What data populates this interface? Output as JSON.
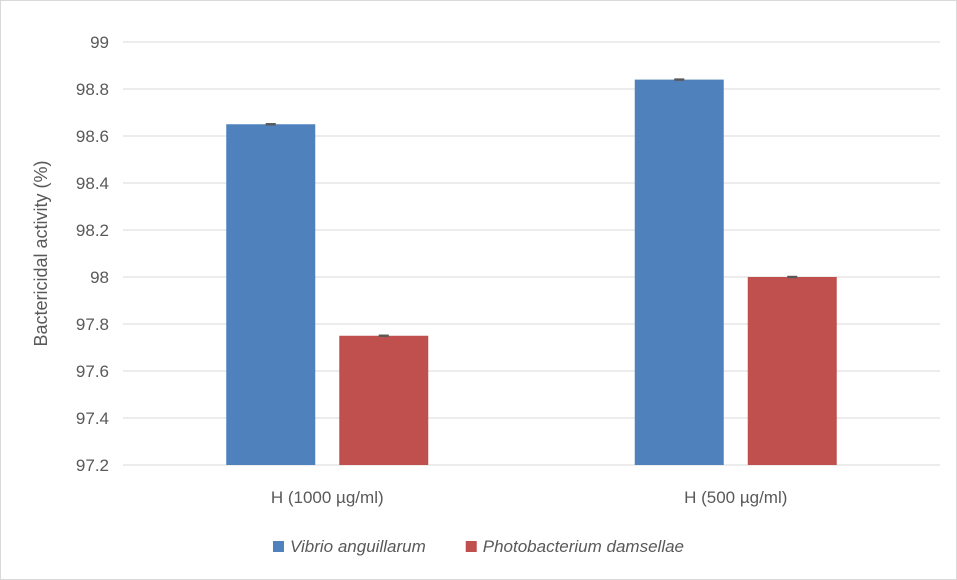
{
  "chart_data": {
    "type": "bar",
    "title": "",
    "xlabel": "",
    "ylabel": "Bactericidal activity (%)",
    "ylim": [
      97.2,
      99
    ],
    "yticks": [
      97.2,
      97.4,
      97.6,
      97.8,
      98,
      98.2,
      98.4,
      98.6,
      98.8,
      99
    ],
    "ytick_labels": [
      "97.2",
      "97.4",
      "97.6",
      "97.8",
      "98",
      "98.2",
      "98.4",
      "98.6",
      "98.8",
      "99"
    ],
    "grid": true,
    "legend_position": "bottom",
    "categories": [
      "H (1000 µg/ml)",
      "H (500 µg/ml)"
    ],
    "series": [
      {
        "name": "Vibrio anguillarum",
        "color": "#4f81bd",
        "values": [
          98.65,
          98.84
        ],
        "errors": [
          0.002,
          0.002
        ]
      },
      {
        "name": "Photobacterium damsellae",
        "color": "#c0504d",
        "values": [
          97.75,
          98.0
        ],
        "errors": [
          0.002,
          0.002
        ]
      }
    ]
  }
}
